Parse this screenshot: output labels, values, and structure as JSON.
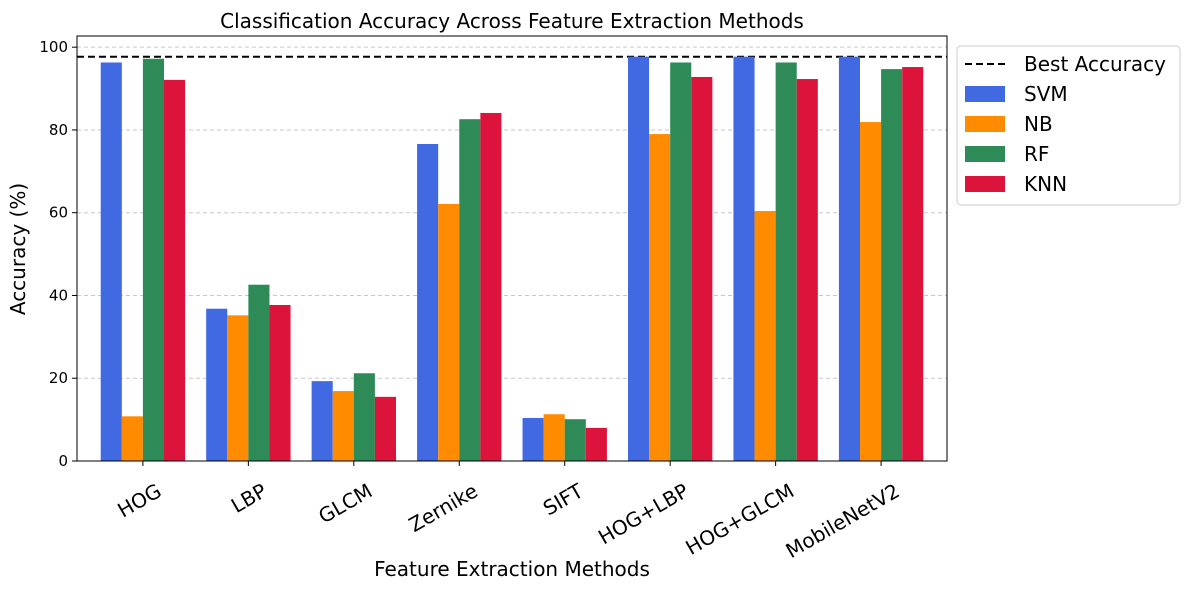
{
  "chart_data": {
    "type": "bar",
    "title": "Classification Accuracy Across Feature Extraction Methods",
    "xlabel": "Feature Extraction Methods",
    "ylabel": "Accuracy (%)",
    "categories": [
      "HOG",
      "LBP",
      "GLCM",
      "Zernike",
      "SIFT",
      "HOG+LBP",
      "HOG+GLCM",
      "MobileNetV2"
    ],
    "series": [
      {
        "name": "SVM",
        "color": "#4169e1",
        "values": [
          96.3,
          36.8,
          19.3,
          76.6,
          10.4,
          97.7,
          97.7,
          97.7
        ]
      },
      {
        "name": "NB",
        "color": "#ff8c00",
        "values": [
          10.8,
          35.2,
          16.9,
          62.1,
          11.3,
          79.0,
          60.4,
          81.9
        ]
      },
      {
        "name": "RF",
        "color": "#2e8b57",
        "values": [
          97.2,
          42.6,
          21.2,
          82.6,
          10.1,
          96.3,
          96.3,
          94.7
        ]
      },
      {
        "name": "KNN",
        "color": "#dc143c",
        "values": [
          92.1,
          37.7,
          15.5,
          84.1,
          8.0,
          92.8,
          92.3,
          95.2
        ]
      }
    ],
    "best_accuracy": {
      "label": "Best Accuracy",
      "value": 97.7
    },
    "ylim": [
      0,
      102.7
    ],
    "yticks": [
      "0",
      "20",
      "40",
      "60",
      "80",
      "100"
    ],
    "grid": "y-dashed",
    "legend_position": "outside-upper-right"
  }
}
